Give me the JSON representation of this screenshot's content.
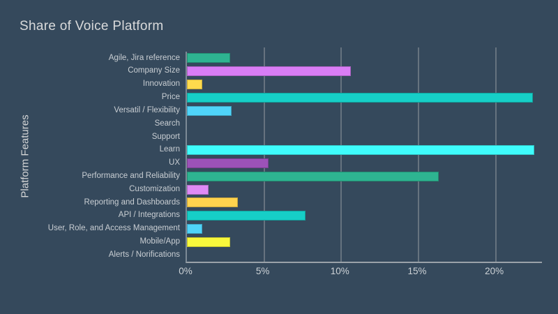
{
  "colors": {
    "background": "#35495c",
    "title_text": "#d9dadb",
    "label_text": "#c9ced3",
    "tick_text": "#cdd2d6",
    "grid_line": "#66737f",
    "axis_left": "#7d8a96",
    "axis_bottom": "#9aa2a9"
  },
  "chart_data": {
    "type": "bar",
    "orientation": "horizontal",
    "title": "Share of Voice Platform",
    "ylabel": "Platform Features",
    "xlabel": "",
    "xlim": [
      0,
      23
    ],
    "grid": true,
    "legend": false,
    "ticks": [
      0,
      5,
      10,
      15,
      20
    ],
    "tick_labels": [
      "0%",
      "5%",
      "10%",
      "15%",
      "20%"
    ],
    "categories": [
      "Agile, Jira reference",
      "Company Size",
      "Innovation",
      "Price",
      "Versatil / Flexibility",
      "Search",
      "Support",
      "Learn",
      "UX",
      "Performance and Reliability",
      "Customization",
      "Reporting and Dashboards",
      "API / Integrations",
      "User, Role, and Access Management",
      "Mobile/App",
      "Alerts / Norifications"
    ],
    "values": [
      2.8,
      10.6,
      1.0,
      22.4,
      2.9,
      0,
      0,
      22.5,
      5.3,
      16.3,
      1.4,
      3.3,
      7.7,
      1.0,
      2.8,
      0
    ],
    "bar_colors": [
      "#2eb491",
      "#d97df5",
      "#ffdb4d",
      "#16cfc7",
      "#4fd4f9",
      "#2eb491",
      "#d97df5",
      "#3ffcfc",
      "#9c52b8",
      "#2eb491",
      "#df8af5",
      "#ffd34e",
      "#16cfc7",
      "#4fd4f9",
      "#f8f83c",
      "#2eb491"
    ]
  }
}
